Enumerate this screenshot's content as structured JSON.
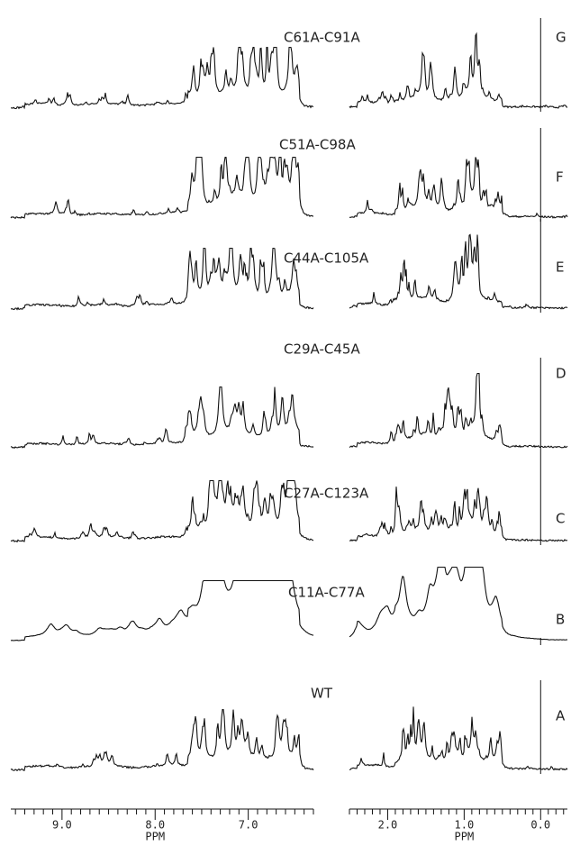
{
  "panels": [
    {
      "label": "C61A-C91A",
      "letter": "G"
    },
    {
      "label": "C51A-C98A",
      "letter": "F"
    },
    {
      "label": "C44A-C105A",
      "letter": "E"
    },
    {
      "label": "C29A-C45A",
      "letter": "D"
    },
    {
      "label": "C27A-C123A",
      "letter": "C"
    },
    {
      "label": "C11A-C77A",
      "letter": "B"
    },
    {
      "label": "WT",
      "letter": "A"
    }
  ],
  "axes": {
    "left": {
      "ticks": [
        "9.0",
        "8.0",
        "7.0"
      ],
      "label": "PPM"
    },
    "right": {
      "ticks": [
        "2.0",
        "1.0",
        "0.0"
      ],
      "label": "PPM"
    }
  }
}
